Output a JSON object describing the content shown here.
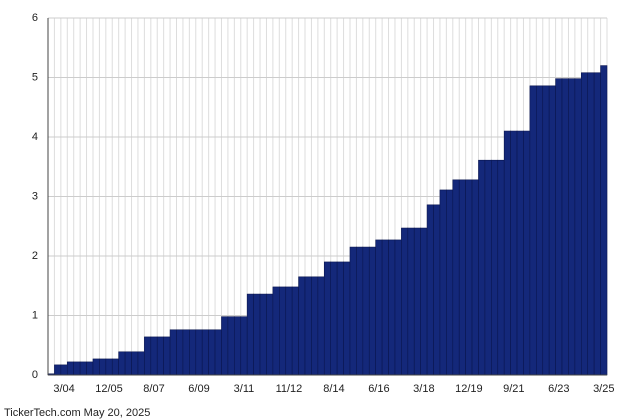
{
  "chart_data": {
    "type": "bar",
    "categories": [
      null,
      null,
      "3/04",
      null,
      null,
      null,
      null,
      null,
      null,
      "12/05",
      null,
      null,
      null,
      null,
      null,
      null,
      "8/07",
      null,
      null,
      null,
      null,
      null,
      null,
      "6/09",
      null,
      null,
      null,
      null,
      null,
      null,
      "3/11",
      null,
      null,
      null,
      null,
      null,
      null,
      "11/12",
      null,
      null,
      null,
      null,
      null,
      null,
      "8/14",
      null,
      null,
      null,
      null,
      null,
      null,
      "6/16",
      null,
      null,
      null,
      null,
      null,
      null,
      "3/18",
      null,
      null,
      null,
      null,
      null,
      null,
      "12/19",
      null,
      null,
      null,
      null,
      null,
      null,
      "9/21",
      null,
      null,
      null,
      null,
      null,
      null,
      "6/23",
      null,
      null,
      null,
      null,
      null,
      null,
      "3/25"
    ],
    "values": [
      0.02,
      0.17,
      0.17,
      0.22,
      0.22,
      0.22,
      0.22,
      0.27,
      0.27,
      0.27,
      0.27,
      0.39,
      0.39,
      0.39,
      0.39,
      0.64,
      0.64,
      0.64,
      0.64,
      0.76,
      0.76,
      0.76,
      0.76,
      0.76,
      0.76,
      0.76,
      0.76,
      0.98,
      0.98,
      0.98,
      0.98,
      1.36,
      1.36,
      1.36,
      1.36,
      1.48,
      1.48,
      1.48,
      1.48,
      1.65,
      1.65,
      1.65,
      1.65,
      1.9,
      1.9,
      1.9,
      1.9,
      2.15,
      2.15,
      2.15,
      2.15,
      2.27,
      2.27,
      2.27,
      2.27,
      2.47,
      2.47,
      2.47,
      2.47,
      2.86,
      2.86,
      3.11,
      3.11,
      3.28,
      3.28,
      3.28,
      3.28,
      3.61,
      3.61,
      3.61,
      3.61,
      4.1,
      4.1,
      4.1,
      4.1,
      4.86,
      4.86,
      4.86,
      4.86,
      4.98,
      4.98,
      4.98,
      4.98,
      5.08,
      5.08,
      5.08,
      5.2
    ],
    "color": "#14287a",
    "ylim": [
      0,
      6
    ],
    "yticks": [
      0,
      1,
      2,
      3,
      4,
      5,
      6
    ],
    "grid": true,
    "footer": "TickerTech.com  May 20, 2025"
  }
}
